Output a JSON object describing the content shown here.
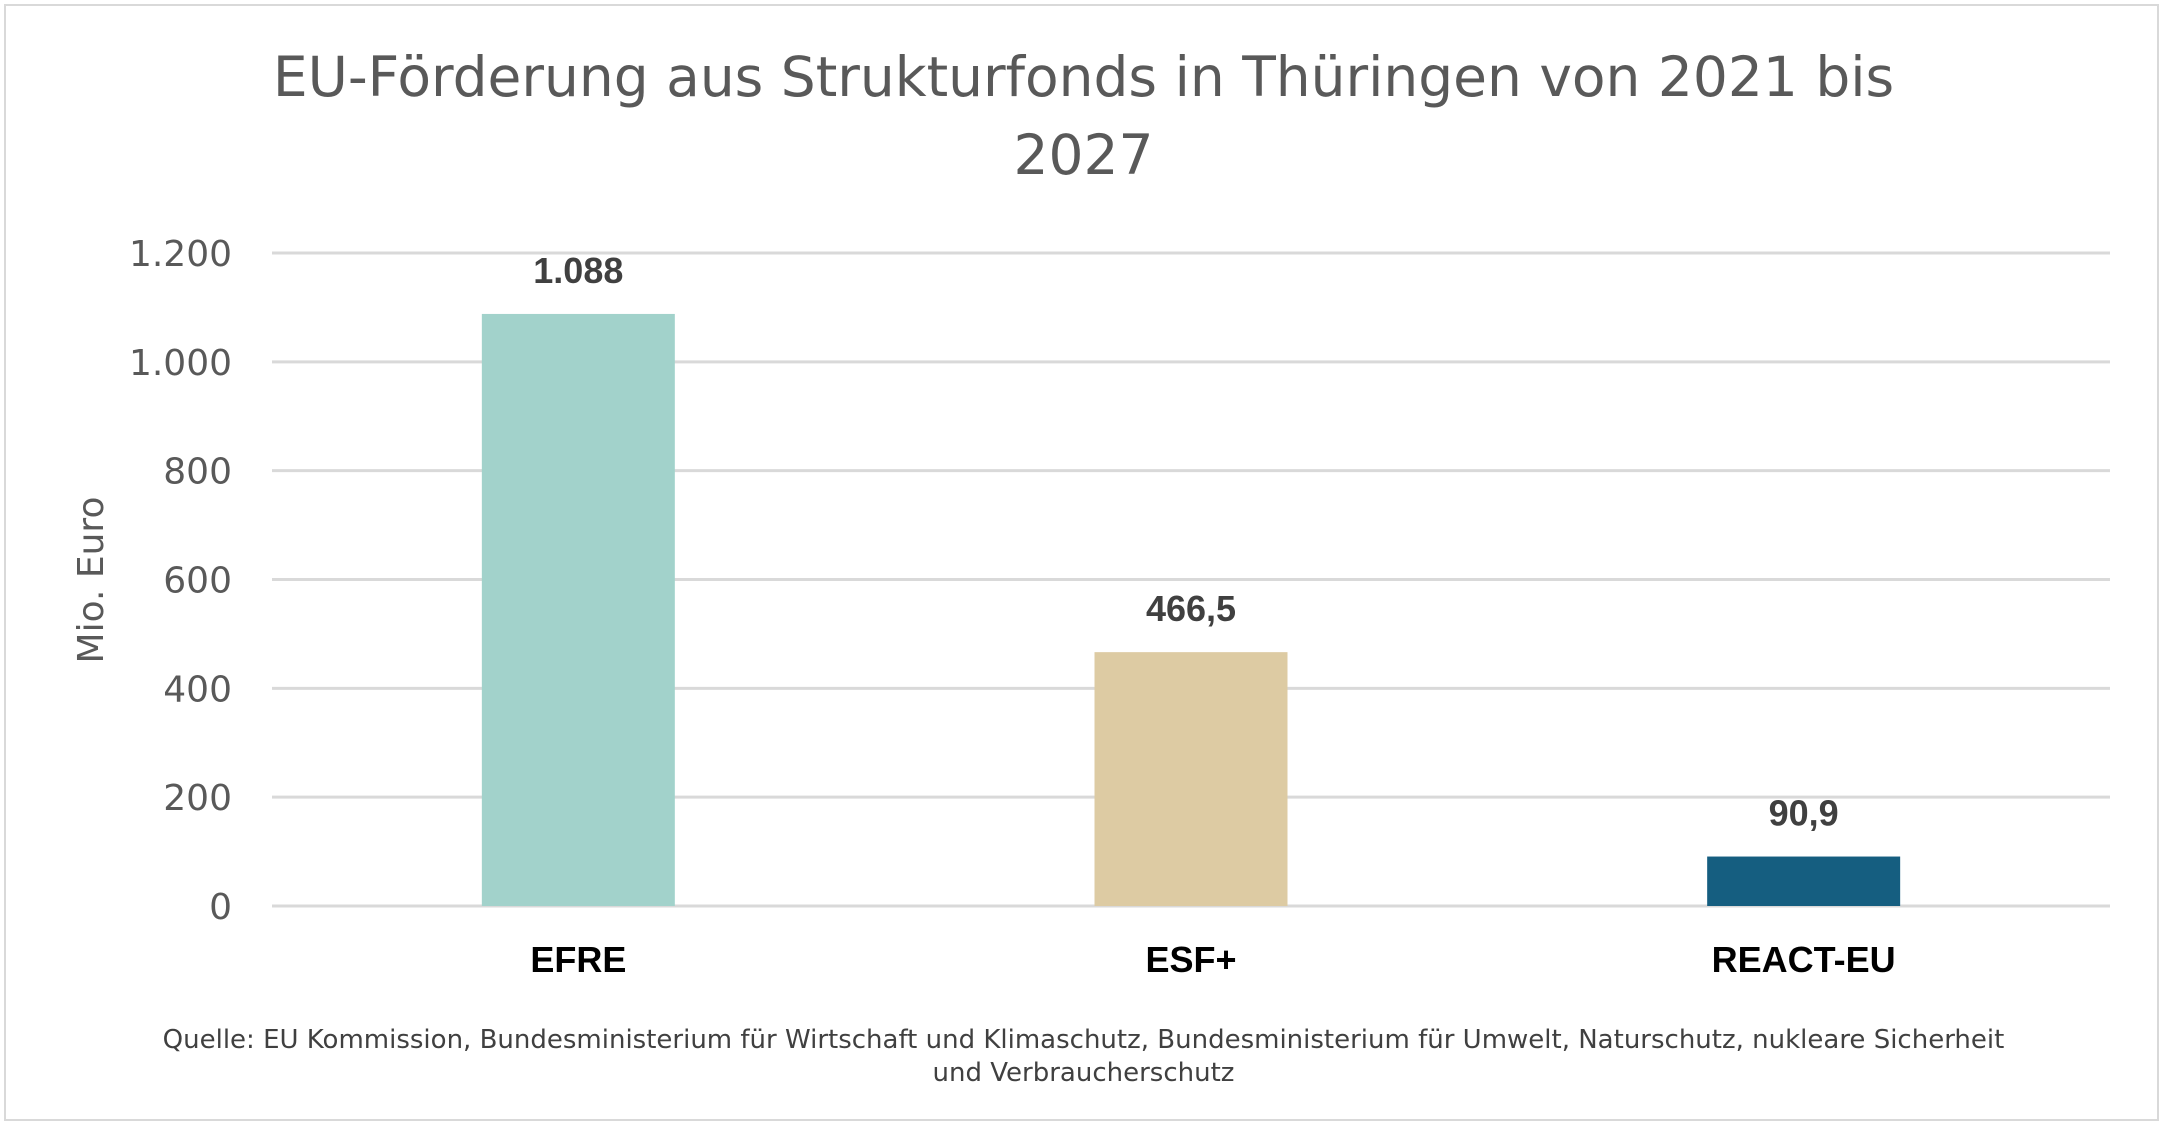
{
  "chart_data": {
    "type": "bar",
    "title_lines": [
      "EU-Förderung aus Strukturfonds in Thüringen von 2021 bis",
      "2027"
    ],
    "ylabel": "Mio. Euro",
    "xlabel": "",
    "categories": [
      "EFRE",
      "ESF+",
      "REACT-EU"
    ],
    "values": [
      1088,
      466.5,
      90.9
    ],
    "value_labels": [
      "1.088",
      "466,5",
      "90,9"
    ],
    "colors": [
      "#a2d2cb",
      "#ddcba3",
      "#155e80"
    ],
    "ylim": [
      0,
      1200
    ],
    "yticks": [
      0,
      200,
      400,
      600,
      800,
      1000,
      1200
    ],
    "ytick_labels": [
      "0",
      "200",
      "400",
      "600",
      "800",
      "1.000",
      "1.200"
    ],
    "grid": true,
    "legend": "none"
  },
  "source_lines": [
    "Quelle: EU Kommission, Bundesministerium für Wirtschaft und Klimaschutz, Bundesministerium für Umwelt, Naturschutz, nukleare Sicherheit",
    "und Verbraucherschutz"
  ]
}
